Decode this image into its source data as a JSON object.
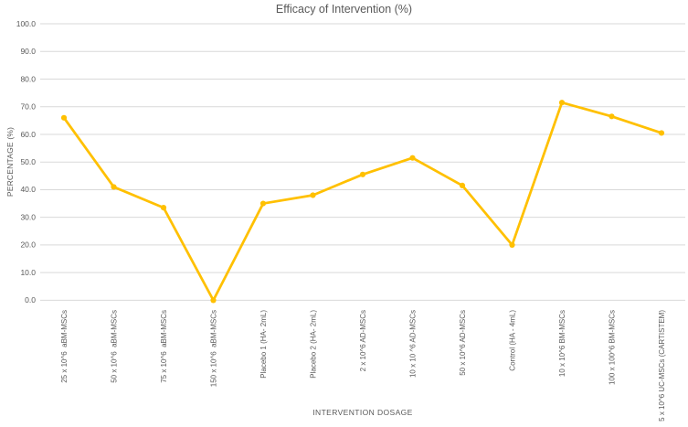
{
  "chart_data": {
    "type": "line",
    "title": "Efficacy of Intervention (%)",
    "xlabel": "INTERVENTION DOSAGE",
    "ylabel": "PERCENTAGE (%)",
    "categories": [
      "25 x 10^6  aBM-MSCs",
      "50 x 10^6  aBM-MSCs",
      "75 x 10^6  aBM-MSCs",
      "150 x 10^6  aBM-MSCs",
      "Placebo 1 (HA- 2mL)",
      "Placebo 2 (HA- 2mL)",
      "2 x 10^6 AD-MSCs",
      "10 x 10 ^6 AD-MSCs",
      "50 x 10^6 AD-MSCs",
      "Control (HA - 4mL)",
      "10 x 10^6 BM-MSCs",
      "100 x 100^6 BM-MSCs",
      "5 x 10^6 UC-MSCs (CARTISTEM)"
    ],
    "values": [
      66,
      41,
      33.5,
      0,
      35,
      38,
      45.5,
      51.5,
      41.5,
      20,
      71.5,
      66.5,
      60.5
    ],
    "ylim": [
      0,
      100
    ],
    "ytick_step": 10,
    "ytick_decimals": 1,
    "grid": "horizontal",
    "legend": "none",
    "marker": "circle",
    "colors": {
      "series": "#FFC000",
      "gridline": "#D9D9D9",
      "text": "#595959",
      "background": "#FFFFFF"
    }
  }
}
